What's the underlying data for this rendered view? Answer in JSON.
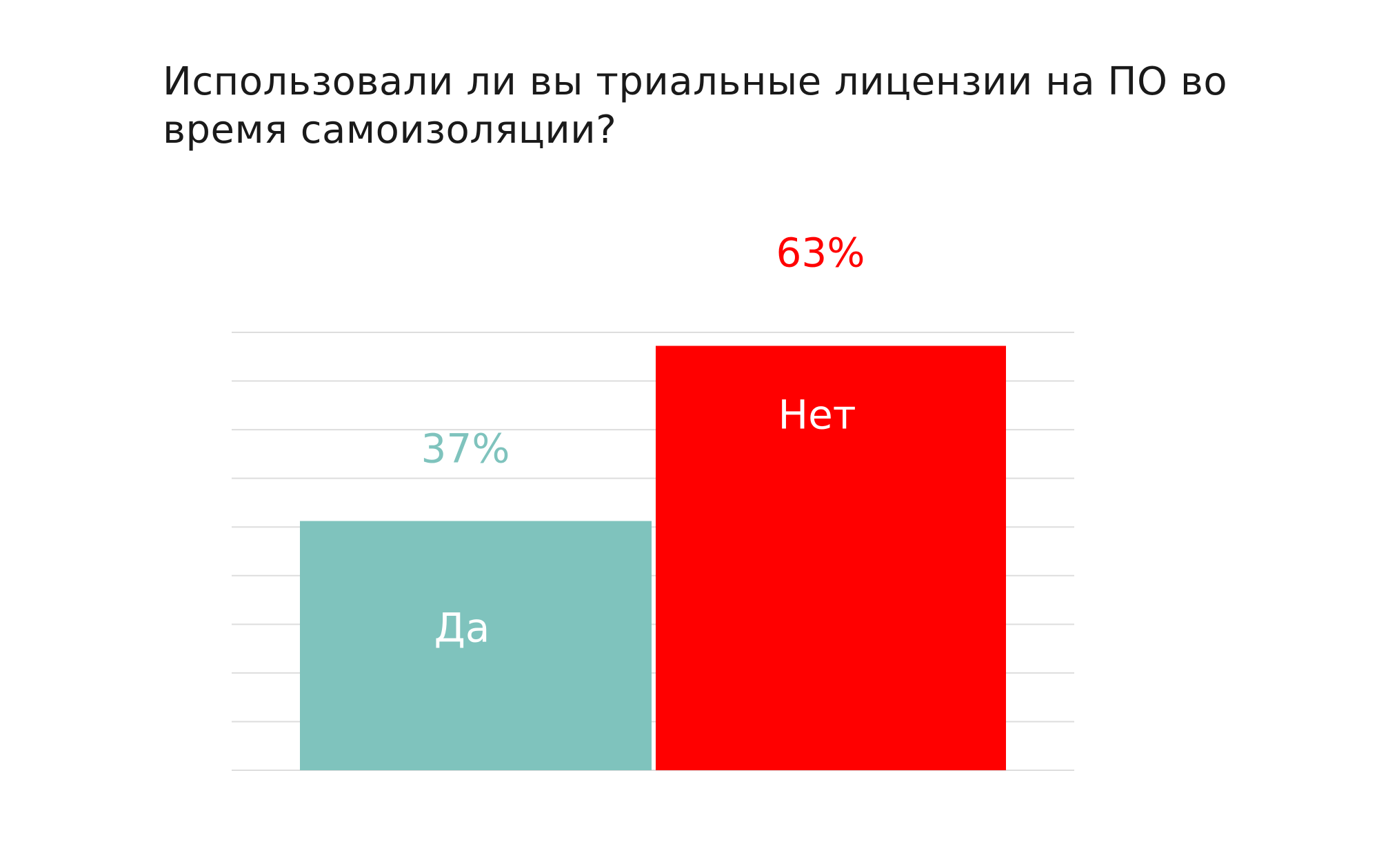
{
  "title": "Использовали ли вы триальные лицензии на ПО во время самоизоляции?",
  "chart_data": {
    "type": "bar",
    "categories": [
      "Да",
      "Нет"
    ],
    "values": [
      37,
      63
    ],
    "value_labels": [
      "37%",
      "63%"
    ],
    "colors": [
      "#7fc3bd",
      "#ff0000"
    ],
    "label_colors": [
      "#ffffff",
      "#ffffff"
    ],
    "value_label_colors": [
      "#7fc3bd",
      "#ff0000"
    ],
    "gridline_color": "#dddddd",
    "ylim": [
      0,
      65
    ],
    "grid": true,
    "title": "Использовали ли вы триальные лицензии на ПО во время самоизоляции?",
    "xlabel": "",
    "ylabel": ""
  }
}
